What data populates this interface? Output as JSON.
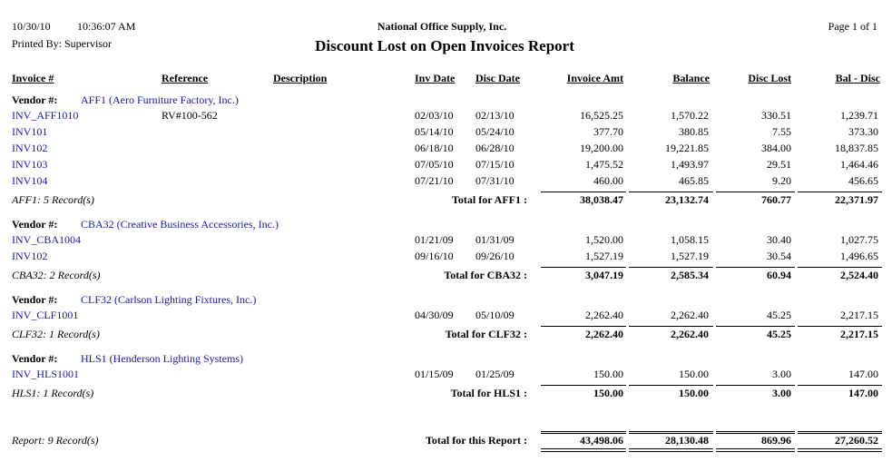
{
  "header": {
    "date": "10/30/10",
    "time": "10:36:07 AM",
    "company": "National Office Supply, Inc.",
    "page": "Page 1 of 1",
    "printed_by": "Printed By: Supervisor",
    "title": "Discount Lost on Open Invoices Report"
  },
  "columns": {
    "invoice": "Invoice #",
    "reference": "Reference",
    "description": "Description",
    "inv_date": "Inv Date",
    "disc_date": "Disc Date",
    "invoice_amt": "Invoice Amt",
    "balance": "Balance",
    "disc_lost": "Disc Lost",
    "bal_disc": "Bal - Disc"
  },
  "vendors": [
    {
      "label": "Vendor #:",
      "vendor": "AFF1 (Aero Furniture Factory, Inc.)",
      "invoices": [
        {
          "invoice": "INV_AFF1010",
          "reference": "RV#100-562",
          "inv_date": "02/03/10",
          "disc_date": "02/13/10",
          "invoice_amt": "16,525.25",
          "balance": "1,570.22",
          "disc_lost": "330.51",
          "bal_disc": "1,239.71"
        },
        {
          "invoice": "INV101",
          "inv_date": "05/14/10",
          "disc_date": "05/24/10",
          "invoice_amt": "377.70",
          "balance": "380.85",
          "disc_lost": "7.55",
          "bal_disc": "373.30"
        },
        {
          "invoice": "INV102",
          "inv_date": "06/18/10",
          "disc_date": "06/28/10",
          "invoice_amt": "19,200.00",
          "balance": "19,221.85",
          "disc_lost": "384.00",
          "bal_disc": "18,837.85"
        },
        {
          "invoice": "INV103",
          "inv_date": "07/05/10",
          "disc_date": "07/15/10",
          "invoice_amt": "1,475.52",
          "balance": "1,493.97",
          "disc_lost": "29.51",
          "bal_disc": "1,464.46"
        },
        {
          "invoice": "INV104",
          "inv_date": "07/21/10",
          "disc_date": "07/31/10",
          "invoice_amt": "460.00",
          "balance": "465.85",
          "disc_lost": "9.20",
          "bal_disc": "456.65"
        }
      ],
      "records": "AFF1: 5 Record(s)",
      "total_label": "Total for AFF1 :",
      "totals": {
        "invoice_amt": "38,038.47",
        "balance": "23,132.74",
        "disc_lost": "760.77",
        "bal_disc": "22,371.97"
      }
    },
    {
      "label": "Vendor #:",
      "vendor": "CBA32 (Creative Business Accessories, Inc.)",
      "invoices": [
        {
          "invoice": "INV_CBA1004",
          "inv_date": "01/21/09",
          "disc_date": "01/31/09",
          "invoice_amt": "1,520.00",
          "balance": "1,058.15",
          "disc_lost": "30.40",
          "bal_disc": "1,027.75"
        },
        {
          "invoice": "INV102",
          "inv_date": "09/16/10",
          "disc_date": "09/26/10",
          "invoice_amt": "1,527.19",
          "balance": "1,527.19",
          "disc_lost": "30.54",
          "bal_disc": "1,496.65"
        }
      ],
      "records": "CBA32: 2 Record(s)",
      "total_label": "Total for CBA32 :",
      "totals": {
        "invoice_amt": "3,047.19",
        "balance": "2,585.34",
        "disc_lost": "60.94",
        "bal_disc": "2,524.40"
      }
    },
    {
      "label": "Vendor #:",
      "vendor": "CLF32 (Carlson Lighting Fixtures, Inc.)",
      "invoices": [
        {
          "invoice": "INV_CLF1001",
          "inv_date": "04/30/09",
          "disc_date": "05/10/09",
          "invoice_amt": "2,262.40",
          "balance": "2,262.40",
          "disc_lost": "45.25",
          "bal_disc": "2,217.15"
        }
      ],
      "records": "CLF32: 1 Record(s)",
      "total_label": "Total for CLF32 :",
      "totals": {
        "invoice_amt": "2,262.40",
        "balance": "2,262.40",
        "disc_lost": "45.25",
        "bal_disc": "2,217.15"
      }
    },
    {
      "label": "Vendor #:",
      "vendor": "HLS1 (Henderson Lighting Systems)",
      "invoices": [
        {
          "invoice": "INV_HLS1001",
          "inv_date": "01/15/09",
          "disc_date": "01/25/09",
          "invoice_amt": "150.00",
          "balance": "150.00",
          "disc_lost": "3.00",
          "bal_disc": "147.00"
        }
      ],
      "records": "HLS1: 1 Record(s)",
      "total_label": "Total for HLS1 :",
      "totals": {
        "invoice_amt": "150.00",
        "balance": "150.00",
        "disc_lost": "3.00",
        "bal_disc": "147.00"
      }
    }
  ],
  "report": {
    "records": "Report: 9 Record(s)",
    "total_label": "Total for this Report :",
    "totals": {
      "invoice_amt": "43,498.06",
      "balance": "28,130.48",
      "disc_lost": "869.96",
      "bal_disc": "27,260.52"
    }
  }
}
